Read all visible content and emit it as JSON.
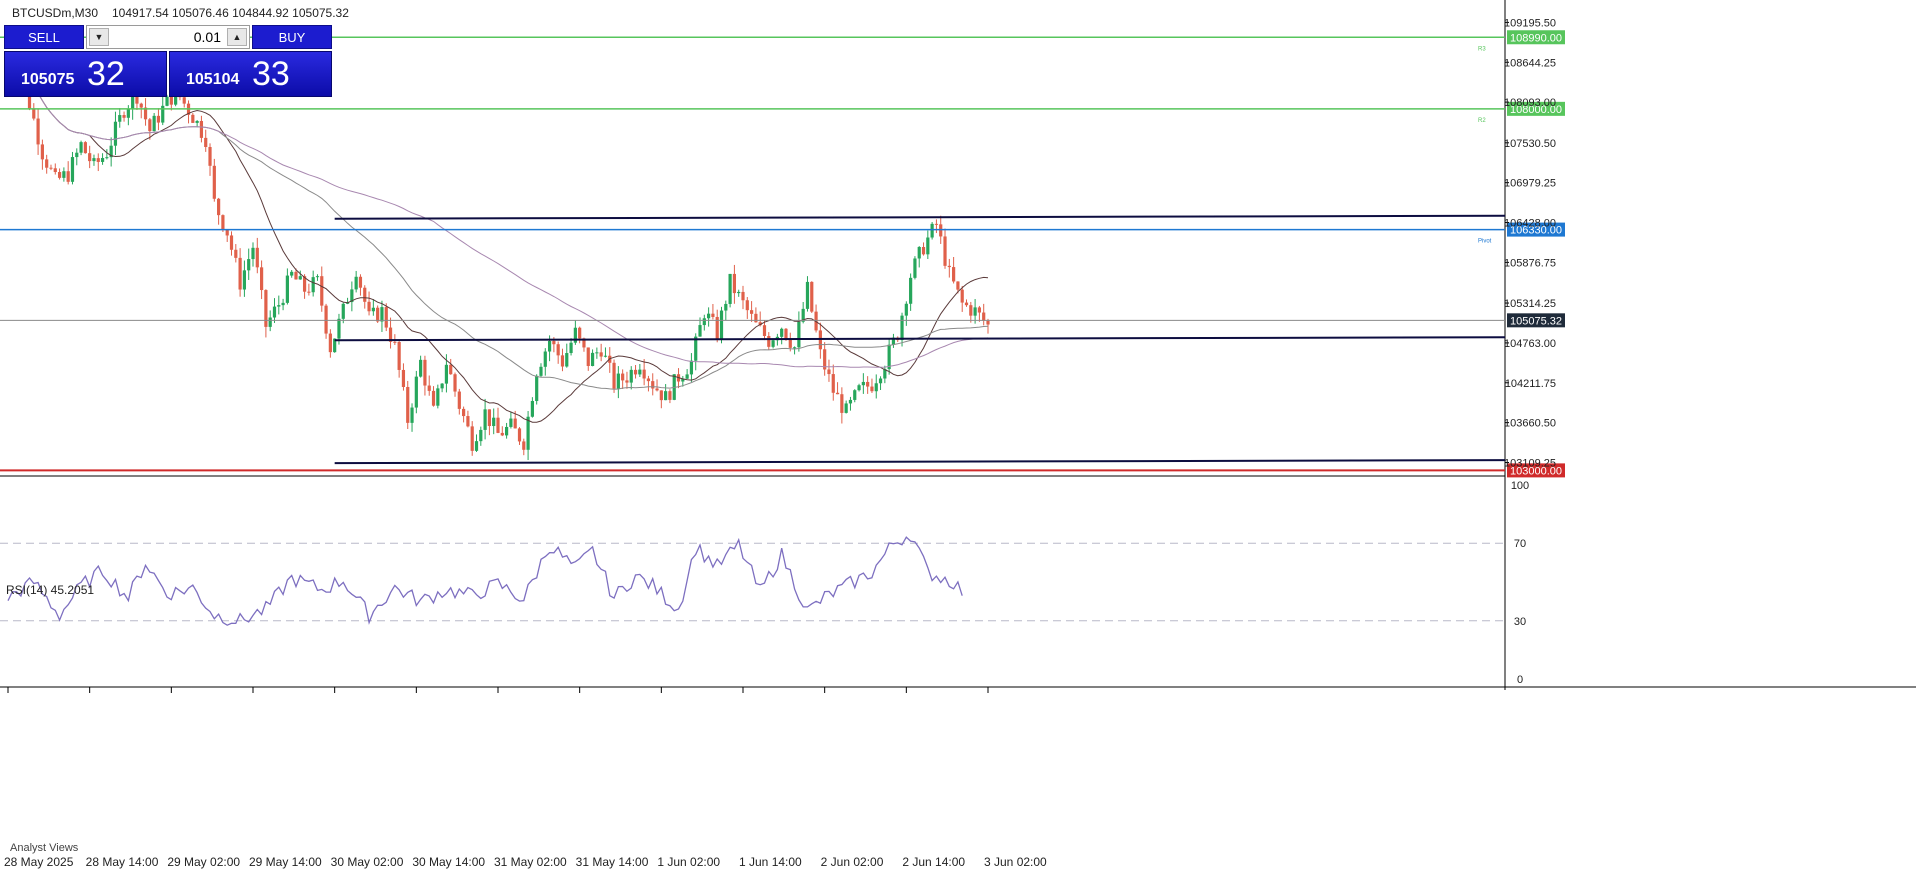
{
  "header": {
    "symbol": "BTCUSDm,M30",
    "ohlc": "104917.54 105076.46 104844.92 105075.32"
  },
  "trade_panel": {
    "sell_label": "SELL",
    "buy_label": "BUY",
    "lot": "0.01",
    "sell_price_small": "105075",
    "sell_price_big": "32",
    "buy_price_small": "105104",
    "buy_price_big": "33"
  },
  "price_axis": {
    "ticks": [
      "109195.50",
      "108644.25",
      "108093.00",
      "107530.50",
      "106979.25",
      "106428.00",
      "105876.75",
      "105314.25",
      "104763.00",
      "104211.75",
      "103660.50",
      "103109.25"
    ],
    "tick_values": [
      109195.5,
      108644.25,
      108093.0,
      107530.5,
      106979.25,
      106428.0,
      105876.75,
      105314.25,
      104763.0,
      104211.75,
      103660.5,
      103109.25
    ]
  },
  "rsi_axis": {
    "ticks": [
      "100",
      "70",
      "30",
      "0"
    ]
  },
  "time_axis": {
    "labels": [
      "28 May 2025",
      "28 May 14:00",
      "29 May 02:00",
      "29 May 14:00",
      "30 May 02:00",
      "30 May 14:00",
      "31 May 02:00",
      "31 May 14:00",
      "1 Jun 02:00",
      "1 Jun 14:00",
      "2 Jun 02:00",
      "2 Jun 14:00",
      "3 Jun 02:00"
    ]
  },
  "levels": [
    {
      "id": "r3",
      "value": 108990.0,
      "label": "108990.00",
      "tag": "R3",
      "color": "#57c55c"
    },
    {
      "id": "r2",
      "value": 108000.0,
      "label": "108000.00",
      "tag": "R2",
      "color": "#57c55c"
    },
    {
      "id": "pivot",
      "value": 106330.0,
      "label": "106330.00",
      "tag": "Pivot",
      "color": "#1e78d2"
    },
    {
      "id": "s",
      "value": 103000.0,
      "label": "103000.00",
      "tag": "",
      "color": "#d02a2a"
    }
  ],
  "current_price": {
    "value": 105075.32,
    "label": "105075.32"
  },
  "indicator": {
    "title": "RSI(14) 45.2051"
  },
  "bottom_tab": "Analyst Views",
  "colors": {
    "bull": "#26a65b",
    "bear": "#e0604a",
    "ma_fast": "#5a3a3a",
    "ma_mid": "#8a8a8a",
    "ma_slow": "#a888b0",
    "rsi": "#7d6fc0",
    "channel": "#0d0d40",
    "current": "#1f2b3a"
  },
  "chart_data": {
    "type": "candlestick",
    "symbol": "BTCUSDm",
    "timeframe": "M30",
    "ylim": [
      102950,
      109450
    ],
    "ohlc_path": [
      [
        0,
        108700
      ],
      [
        4,
        108300
      ],
      [
        8,
        107400
      ],
      [
        11,
        107000
      ],
      [
        14,
        107100
      ],
      [
        17,
        107500
      ],
      [
        20,
        107200
      ],
      [
        23,
        107400
      ],
      [
        27,
        108000
      ],
      [
        30,
        108200
      ],
      [
        33,
        107700
      ],
      [
        36,
        108000
      ],
      [
        39,
        108250
      ],
      [
        43,
        107900
      ],
      [
        46,
        107600
      ],
      [
        48,
        106700
      ],
      [
        51,
        106300
      ],
      [
        54,
        105600
      ],
      [
        57,
        106100
      ],
      [
        60,
        105000
      ],
      [
        63,
        105300
      ],
      [
        66,
        105700
      ],
      [
        69,
        105500
      ],
      [
        72,
        105600
      ],
      [
        75,
        104700
      ],
      [
        78,
        105200
      ],
      [
        81,
        105800
      ],
      [
        84,
        105100
      ],
      [
        87,
        105200
      ],
      [
        90,
        104700
      ],
      [
        93,
        103700
      ],
      [
        96,
        104500
      ],
      [
        99,
        103800
      ],
      [
        102,
        104500
      ],
      [
        105,
        103900
      ],
      [
        108,
        103400
      ],
      [
        111,
        103800
      ],
      [
        114,
        103500
      ],
      [
        117,
        103600
      ],
      [
        120,
        103400
      ],
      [
        123,
        104400
      ],
      [
        126,
        104800
      ],
      [
        129,
        104500
      ],
      [
        132,
        104900
      ],
      [
        135,
        104500
      ],
      [
        138,
        104700
      ],
      [
        141,
        104200
      ],
      [
        144,
        104300
      ],
      [
        147,
        104500
      ],
      [
        150,
        104200
      ],
      [
        153,
        104000
      ],
      [
        156,
        104300
      ],
      [
        159,
        104500
      ],
      [
        162,
        105200
      ],
      [
        165,
        104900
      ],
      [
        168,
        105600
      ],
      [
        171,
        105300
      ],
      [
        174,
        105000
      ],
      [
        177,
        104800
      ],
      [
        180,
        105000
      ],
      [
        183,
        104700
      ],
      [
        186,
        105500
      ],
      [
        189,
        104600
      ],
      [
        192,
        104100
      ],
      [
        195,
        103800
      ],
      [
        198,
        104100
      ],
      [
        201,
        104200
      ],
      [
        204,
        104500
      ],
      [
        207,
        104900
      ],
      [
        210,
        105700
      ],
      [
        213,
        106100
      ],
      [
        216,
        106400
      ],
      [
        219,
        105700
      ],
      [
        222,
        105300
      ],
      [
        225,
        105200
      ],
      [
        228,
        105000
      ]
    ],
    "candle_count": 229,
    "channel": {
      "top": 106480,
      "middle": 104800,
      "bottom": 103100
    },
    "rsi_ylim": [
      0,
      100
    ],
    "rsi_path": [
      [
        0,
        42
      ],
      [
        6,
        50
      ],
      [
        12,
        33
      ],
      [
        17,
        48
      ],
      [
        22,
        56
      ],
      [
        28,
        42
      ],
      [
        32,
        60
      ],
      [
        37,
        44
      ],
      [
        43,
        47
      ],
      [
        48,
        33
      ],
      [
        54,
        30
      ],
      [
        60,
        36
      ],
      [
        66,
        52
      ],
      [
        73,
        46
      ],
      [
        78,
        51
      ],
      [
        84,
        33
      ],
      [
        90,
        47
      ],
      [
        96,
        40
      ],
      [
        102,
        46
      ],
      [
        108,
        43
      ],
      [
        114,
        49
      ],
      [
        120,
        41
      ],
      [
        126,
        69
      ],
      [
        132,
        57
      ],
      [
        136,
        66
      ],
      [
        141,
        42
      ],
      [
        146,
        53
      ],
      [
        150,
        48
      ],
      [
        156,
        36
      ],
      [
        160,
        68
      ],
      [
        165,
        58
      ],
      [
        170,
        69
      ],
      [
        175,
        45
      ],
      [
        180,
        64
      ],
      [
        186,
        35
      ],
      [
        190,
        42
      ],
      [
        195,
        48
      ],
      [
        201,
        55
      ],
      [
        206,
        70
      ],
      [
        210,
        75
      ],
      [
        214,
        55
      ],
      [
        220,
        50
      ],
      [
        222,
        45
      ]
    ],
    "rsi_levels": [
      70,
      30
    ],
    "rsi_value": 45.2051
  }
}
